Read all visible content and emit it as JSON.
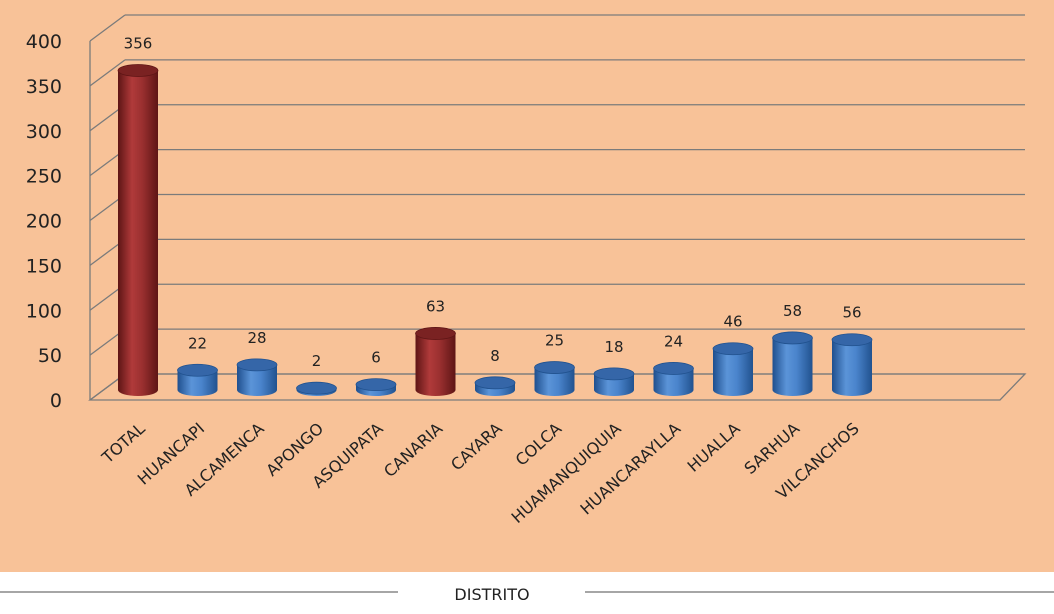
{
  "chart_data": {
    "type": "bar",
    "title": "",
    "xlabel": "DISTRITO",
    "ylabel": "",
    "ylim": [
      0,
      400
    ],
    "yticks": [
      0,
      50,
      100,
      150,
      200,
      250,
      300,
      350,
      400
    ],
    "grid": true,
    "categories": [
      "TOTAL",
      "HUANCAPI",
      "ALCAMENCA",
      "APONGO",
      "ASQUIPATA",
      "CANARIA",
      "CAYARA",
      "COLCA",
      "HUAMANQUIQUIA",
      "HUANCARAYLLA",
      "HUALLA",
      "SARHUA",
      "VILCANCHOS"
    ],
    "values": [
      356,
      22,
      28,
      2,
      6,
      63,
      8,
      25,
      18,
      24,
      46,
      58,
      56
    ],
    "bar_colors": [
      "#8e2a2a",
      "#3f79c0",
      "#3f79c0",
      "#3f79c0",
      "#3f79c0",
      "#8e2a2a",
      "#3f79c0",
      "#3f79c0",
      "#3f79c0",
      "#3f79c0",
      "#3f79c0",
      "#3f79c0",
      "#3f79c0"
    ],
    "background_color": "#f8c298"
  }
}
